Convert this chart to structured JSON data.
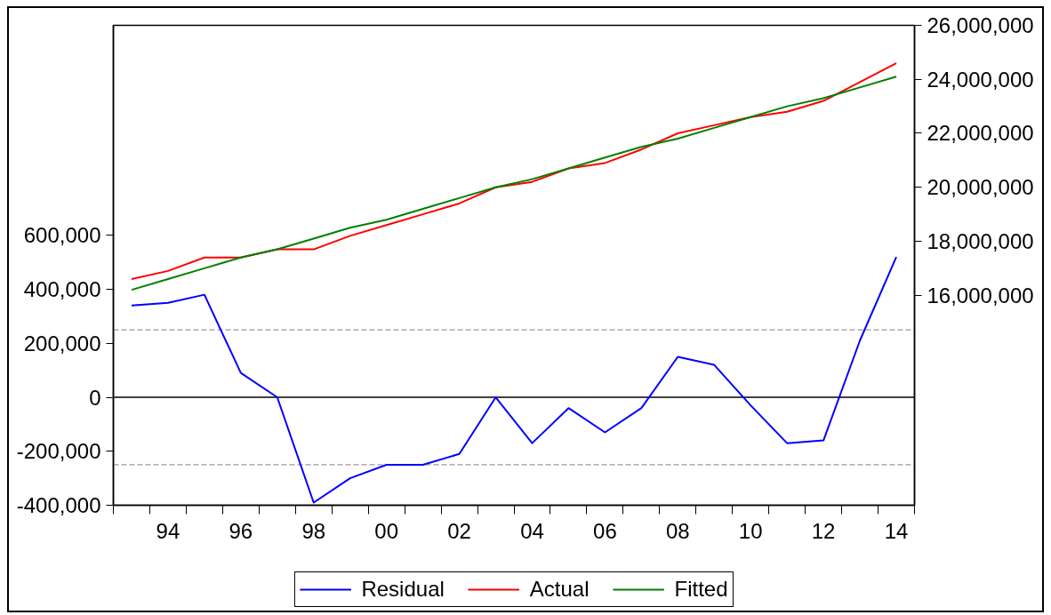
{
  "chart_data": {
    "type": "line",
    "x": [
      1993,
      1994,
      1995,
      1996,
      1997,
      1998,
      1999,
      2000,
      2001,
      2002,
      2003,
      2004,
      2005,
      2006,
      2007,
      2008,
      2009,
      2010,
      2011,
      2012,
      2013,
      2014
    ],
    "xlim": [
      1992.5,
      2014.5
    ],
    "xticks": [
      {
        "value": 1992.5,
        "label": null
      },
      {
        "value": 1993.5,
        "label": null
      },
      {
        "value": 1994.5,
        "label": null
      },
      {
        "value": 1995.5,
        "label": null
      },
      {
        "value": 1996.5,
        "label": null
      },
      {
        "value": 1997.5,
        "label": null
      },
      {
        "value": 1998.5,
        "label": null
      },
      {
        "value": 1999.5,
        "label": null
      },
      {
        "value": 2000.5,
        "label": null
      },
      {
        "value": 2001.5,
        "label": null
      },
      {
        "value": 2002.5,
        "label": null
      },
      {
        "value": 2003.5,
        "label": null
      },
      {
        "value": 2004.5,
        "label": null
      },
      {
        "value": 2005.5,
        "label": null
      },
      {
        "value": 2006.5,
        "label": null
      },
      {
        "value": 2007.5,
        "label": null
      },
      {
        "value": 2008.5,
        "label": null
      },
      {
        "value": 2009.5,
        "label": null
      },
      {
        "value": 2010.5,
        "label": null
      },
      {
        "value": 2011.5,
        "label": null
      },
      {
        "value": 2012.5,
        "label": null
      },
      {
        "value": 2013.5,
        "label": null
      },
      {
        "value": 2014.5,
        "label": null
      },
      {
        "value": 1994,
        "label": "94"
      },
      {
        "value": 1996,
        "label": "96"
      },
      {
        "value": 1998,
        "label": "98"
      },
      {
        "value": 2000,
        "label": "00"
      },
      {
        "value": 2002,
        "label": "02"
      },
      {
        "value": 2004,
        "label": "04"
      },
      {
        "value": 2006,
        "label": "06"
      },
      {
        "value": 2008,
        "label": "08"
      },
      {
        "value": 2010,
        "label": "10"
      },
      {
        "value": 2012,
        "label": "12"
      },
      {
        "value": 2014,
        "label": "14"
      }
    ],
    "ylim": [
      -400000,
      1378000
    ],
    "yticks": [
      {
        "value": -400000,
        "label": "-400,000"
      },
      {
        "value": -200000,
        "label": "-200,000"
      },
      0,
      {
        "value": 200000,
        "label": "200,000"
      },
      {
        "value": 400000,
        "label": "400,000"
      },
      {
        "value": 600000,
        "label": "600,000"
      }
    ],
    "y2lim": [
      8220000,
      26000000
    ],
    "y2ticks": [
      {
        "value": 16000000,
        "label": "16,000,000"
      },
      {
        "value": 18000000,
        "label": "18,000,000"
      },
      {
        "value": 20000000,
        "label": "20,000,000"
      },
      {
        "value": 22000000,
        "label": "22,000,000"
      },
      {
        "value": 24000000,
        "label": "24,000,000"
      },
      {
        "value": 26000000,
        "label": "26,000,000"
      }
    ],
    "series": [
      {
        "name": "Residual",
        "color": "#0000ff",
        "values": [
          340000,
          350000,
          380000,
          90000,
          0,
          -390000,
          -300000,
          -250000,
          -250000,
          -210000,
          0,
          -170000,
          -40000,
          -130000,
          -40000,
          150000,
          120000,
          -30000,
          -170000,
          -160000,
          210000,
          520000
        ]
      },
      {
        "name": "Actual",
        "color": "#ff0000",
        "axis": "y2",
        "values": [
          16600000,
          16900000,
          17400000,
          17400000,
          17700000,
          17700000,
          18200000,
          18600000,
          19000000,
          19400000,
          20000000,
          20200000,
          20700000,
          20900000,
          21400000,
          22000000,
          22300000,
          22600000,
          22800000,
          23200000,
          23900000,
          24600000
        ]
      },
      {
        "name": "Fitted",
        "color": "#008000",
        "axis": "y2",
        "values": [
          16200000,
          16600000,
          17000000,
          17400000,
          17700000,
          18100000,
          18500000,
          18800000,
          19200000,
          19600000,
          20000000,
          20300000,
          20700000,
          21100000,
          21500000,
          21800000,
          22200000,
          22600000,
          23000000,
          23300000,
          23700000,
          24100000
        ]
      }
    ],
    "ref_lines": [
      {
        "axis": "y",
        "value": 0,
        "color": "#000000",
        "line_style": "solid"
      },
      {
        "axis": "y",
        "value": 250000,
        "color": "#999999",
        "line_style": "dashed"
      },
      {
        "axis": "y",
        "value": -250000,
        "color": "#999999",
        "line_style": "dashed"
      }
    ],
    "legend": "bottom"
  }
}
